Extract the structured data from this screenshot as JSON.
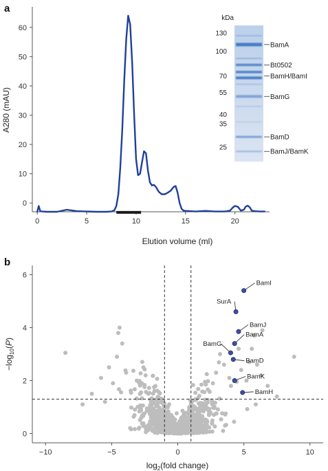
{
  "panels": {
    "a": "a",
    "b": "b"
  },
  "chart_data": [
    {
      "type": "line",
      "panel": "a",
      "xlabel": "Elution volume (ml)",
      "ylabel": "A280 (mAU)",
      "xlim": [
        -0.5,
        23.5
      ],
      "ylim": [
        -3,
        67
      ],
      "xticks": [
        0,
        5,
        10,
        15,
        20
      ],
      "yticks": [
        0,
        10,
        20,
        30,
        40,
        50,
        60
      ],
      "color": "#1f3f99",
      "series": [
        {
          "x": [
            0,
            0.15,
            0.3,
            0.5,
            1,
            2,
            3,
            4,
            5,
            6,
            7,
            7.5,
            7.8,
            8.0,
            8.2,
            8.4,
            8.6,
            8.8,
            9.0,
            9.2,
            9.4,
            9.6,
            9.8,
            10.0,
            10.2,
            10.4,
            10.6,
            10.8,
            11.0,
            11.2,
            11.4,
            11.6,
            11.8,
            12.0,
            12.3,
            12.6,
            12.9,
            13.2,
            13.5,
            13.8,
            14.0,
            14.2,
            14.4,
            14.6,
            14.8,
            15.0,
            15.5,
            16,
            17,
            18,
            19,
            19.5,
            19.8,
            20.0,
            20.3,
            20.6,
            20.9,
            21.1,
            21.3,
            21.5,
            21.7,
            22.0,
            22.5,
            23
          ],
          "y": [
            -3,
            -1,
            -2.8,
            -2.9,
            -3,
            -3,
            -2.3,
            -2.8,
            -2.9,
            -3,
            -3,
            -2.9,
            -2.5,
            -1,
            3,
            12,
            25,
            42,
            56,
            64,
            61,
            48,
            30,
            15,
            9.5,
            10,
            14,
            17.7,
            17,
            11,
            7,
            6,
            6.2,
            5.5,
            3.8,
            3,
            3,
            3.5,
            4.2,
            5.5,
            5.8,
            3.5,
            0,
            -2,
            -2.6,
            -2.7,
            -2.8,
            -2.9,
            -2.7,
            -2.9,
            -2.9,
            -2.6,
            -1.5,
            -1.0,
            -1.3,
            -2.6,
            -2.3,
            -1.2,
            -0.9,
            -1.5,
            -2.6,
            -2.8,
            -2.9,
            -2.9
          ]
        }
      ],
      "annotations": [
        {
          "type": "bar",
          "x_start": 8,
          "x_end": 10.5
        }
      ],
      "inset_gel": {
        "mw_header": "kDa",
        "mw_markers": [
          {
            "label": "130",
            "kda": 130
          },
          {
            "label": "100",
            "kda": 100
          },
          {
            "label": "70",
            "kda": 70
          },
          {
            "label": "55",
            "kda": 55
          },
          {
            "label": "40",
            "kda": 40
          },
          {
            "label": "35",
            "kda": 35
          },
          {
            "label": "25",
            "kda": 25
          }
        ],
        "band_labels": [
          {
            "text": "BamA",
            "kda": 110
          },
          {
            "text": "Bt0502",
            "kda": 82
          },
          {
            "text": "BamH/BamI",
            "kda": 70
          },
          {
            "text": "BamG",
            "kda": 52
          },
          {
            "text": "BamD",
            "kda": 29
          },
          {
            "text": "BamJ/BamK",
            "kda": 23.5
          }
        ],
        "color": "#3f78c4"
      }
    },
    {
      "type": "scatter",
      "panel": "b",
      "xlabel": "log2(fold change)",
      "ylabel": "−log10(P)",
      "xlim": [
        -11,
        11
      ],
      "ylim": [
        -0.35,
        6.35
      ],
      "xticks": [
        -10,
        -5,
        0,
        5,
        10
      ],
      "yticks": [
        0,
        2,
        4,
        6
      ],
      "thresholds": {
        "x": [
          -1,
          1
        ],
        "y": 1.3
      },
      "colors": {
        "background": "#bdbdbd",
        "highlight": "#3b4f9e"
      },
      "highlighted": [
        {
          "label": "BamI",
          "x": 5.0,
          "y": 5.4
        },
        {
          "label": "SurA",
          "x": 4.4,
          "y": 4.6
        },
        {
          "label": "BamJ",
          "x": 4.6,
          "y": 3.85
        },
        {
          "label": "BamA",
          "x": 4.3,
          "y": 3.4
        },
        {
          "label": "BamG",
          "x": 4.0,
          "y": 3.05
        },
        {
          "label": "BamD",
          "x": 4.2,
          "y": 2.8
        },
        {
          "label": "BamK",
          "x": 4.3,
          "y": 2.0
        },
        {
          "label": "BamH",
          "x": 4.9,
          "y": 1.55
        }
      ]
    }
  ]
}
